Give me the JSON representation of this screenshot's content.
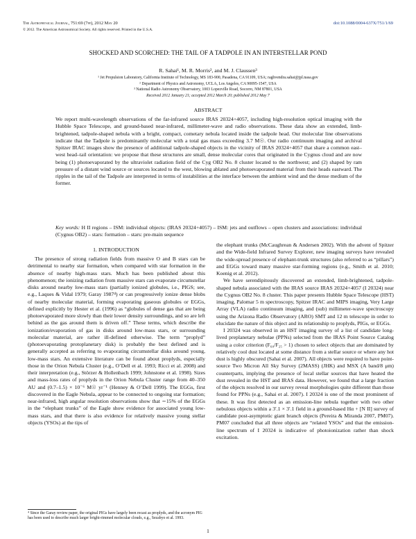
{
  "header": {
    "journal": "The Astrophysical Journal, 751:69 (7pp), 2012 May 20",
    "doi": "doi:10.1088/0004-637X/751/1/69",
    "copyright": "© 2012. The American Astronomical Society. All rights reserved. Printed in the U.S.A."
  },
  "title": "SHOCKED AND SCORCHED: THE TAIL OF A TADPOLE IN AN INTERSTELLAR POND",
  "authors": "R. Sahai¹, M. R. Morris², and M. J. Claussen³",
  "affiliations": [
    "¹ Jet Propulsion Laboratory, California Institute of Technology, MS 183-900, Pasadena, CA 91109, USA; raghvendra.sahai@jpl.nasa.gov",
    "² Department of Physics and Astronomy, UCLA, Los Angeles, CA 90095-1547, USA",
    "³ National Radio Astronomy Observatory, 1003 Lopezville Road, Socorro, NM 87801, USA"
  ],
  "dates": "Received 2012 January 21; accepted 2012 March 20; published 2012 May 7",
  "abstract": {
    "heading": "ABSTRACT",
    "text": "We report multi-wavelength observations of the far-infrared source IRAS 20324+4057, including high-resolution optical imaging with the Hubble Space Telescope, and ground-based near-infrared, millimeter-wave and radio observations. These data show an extended, limb-brightened, tadpole-shaped nebula with a bright, compact, cometary nebula located inside the tadpole head. Our molecular line observations indicate that the Tadpole is predominantly molecular with a total gas mass exceeding 3.7 M☉. Our radio continuum imaging and archival Spitzer IRAC images show the presence of additional tadpole-shaped objects in the vicinity of IRAS 20324+4057 that share a common east–west head–tail orientation: we propose that these structures are small, dense molecular cores that originated in the Cygnus cloud and are now being (1) photoevaporated by the ultraviolet radiation field of the Cyg OB2 No. 8 cluster located to the northwest; and (2) shaped by ram pressure of a distant wind source or sources located to the west, blowing ablated and photoevaporated material from their heads eastward. The ripples in the tail of the Tadpole are interpreted in terms of instabilities at the interface between the ambient wind and the dense medium of the former."
  },
  "keywords": {
    "label": "Key words:",
    "text": "H II regions – ISM: individual objects: (IRAS 20324+4057) – ISM: jets and outflows – open clusters and associations: individual (Cygnus OB2) – stars: formation – stars: pre-main sequence"
  },
  "section": "1. INTRODUCTION",
  "left_column": "The presence of strong radiation fields from massive O and B stars can be detrimental to nearby star formation, when compared with star formation in the absence of nearby high-mass stars. Much has been published about this phenomenon; the ionizing radiation from massive stars can evaporate circumstellar disks around nearby low-mass stars (partially ionized globules, i.e., PIGS; see, e.g., Laques & Vidal 1979; Garay 1987⁴) or can progressively ionize dense blobs of nearby molecular material, forming evaporating gaseous globules or EGGs, defined explicitly by Hester et al. (1996) as “globules of dense gas that are being photoevaporated more slowly than their lower density surroundings, and so are left behind as the gas around them is driven off.” These terms, which describe the ionization/evaporation of gas in disks around low-mass stars, or surrounding molecular material, are rather ill-defined otherwise. The term “proplyd” (photoevaporating protoplanetary disk) is probably the best defined and is generally accepted as referring to evaporating circumstellar disks around young, low-mass stars. An extensive literature can be found about proplyds, especially those in the Orion Nebula Cluster (e.g., O’Dell et al. 1993; Ricci et al. 2008) and their interpretation (e.g., Störzer & Hollenbach 1999; Johnstone et al. 1998). Sizes and mass-loss rates of proplyds in the Orion Nebula Cluster range from 40–350 AU and (0.7–1.5) × 10⁻⁶ M☉ yr⁻¹ (Henney & O’Dell 1999). The EGGs, first discovered in the Eagle Nebula, appear to be connected to ongoing star formation; near-infrared, high angular resolution observations show that ∼15% of the EGGs in the “elephant trunks” of the Eagle show evidence for associated young low-mass stars, and that there is also evidence for relatively massive young stellar objects (YSOs) at the tips of",
  "right_column": [
    "the elephant trunks (McCaughrean & Andersen 2002). With the advent of Spitzer and the Wide-field Infrared Survey Explorer, new imaging surveys have revealed the wide-spread presence of elephant-trunk structures (also referred to as “pillars”) and EGGs toward many massive star-forming regions (e.g., Smith et al. 2010; Koenig et al. 2012).",
    "We have serendipitously discovered an extended, limb-brightened, tadpole-shaped nebula associated with the IRAS source IRAS 20324+4057 (I 20324) near the Cygnus OB2 No. 8 cluster. This paper presents Hubble Space Telescope (HST) imaging, Palomar 5 m spectroscopy, Spitzer IRAC and MIPS imaging, Very Large Array (VLA) radio continuum imaging, and (sub) millimeter-wave spectroscopy using the Arizona Radio Observatory (ARO) SMT and 12 m telescope in order to elucidate the nature of this object and its relationship to proplyds, PIGs, or EGGs.",
    "I 20324 was observed in an HST imaging survey of a list of candidate long-lived preplanetary nebulae (PPNs) selected from the IRAS Point Source Catalog using a color criterion (F₆₀/F₂₅ > 1) chosen to select objects that are dominated by relatively cool dust located at some distance from a stellar source or where any hot dust is highly obscured (Sahai et al. 2007). All objects were required to have point-source Two Micron All Sky Survey (2MASS) (JHK) and MSX (A band/8 μm) counterparts, implying the presence of local stellar sources that have heated the dust revealed in the HST and IRAS data. However, we found that a large fraction of the objects resolved in our survey reveal morphologies quite different than those found for PPNs (e.g., Sahai et al. 2007). I 20324 is one of the most prominent of these. It was first detected as an emission-line nebula together with two other nebulous objects within a 3′.1 × 3′.1 field in a ground-based Hα + [N II] survey of candidate post-asymptotic giant branch objects (Pereira & Miranda 2007, PM07). PM07 concluded that all three objects are “related YSOs” and that the emission-line spectrum of I 20324 is indicative of photoionization rather than shock excitation."
  ],
  "footnote": "⁴ Since the Garay review paper, the original PIGs have largely been recast as proplyds, and the acronym PIG has been used to describe much larger bright-rimmed molecular clouds, e.g., Sezabyo et al. 1993.",
  "page_number": "1"
}
